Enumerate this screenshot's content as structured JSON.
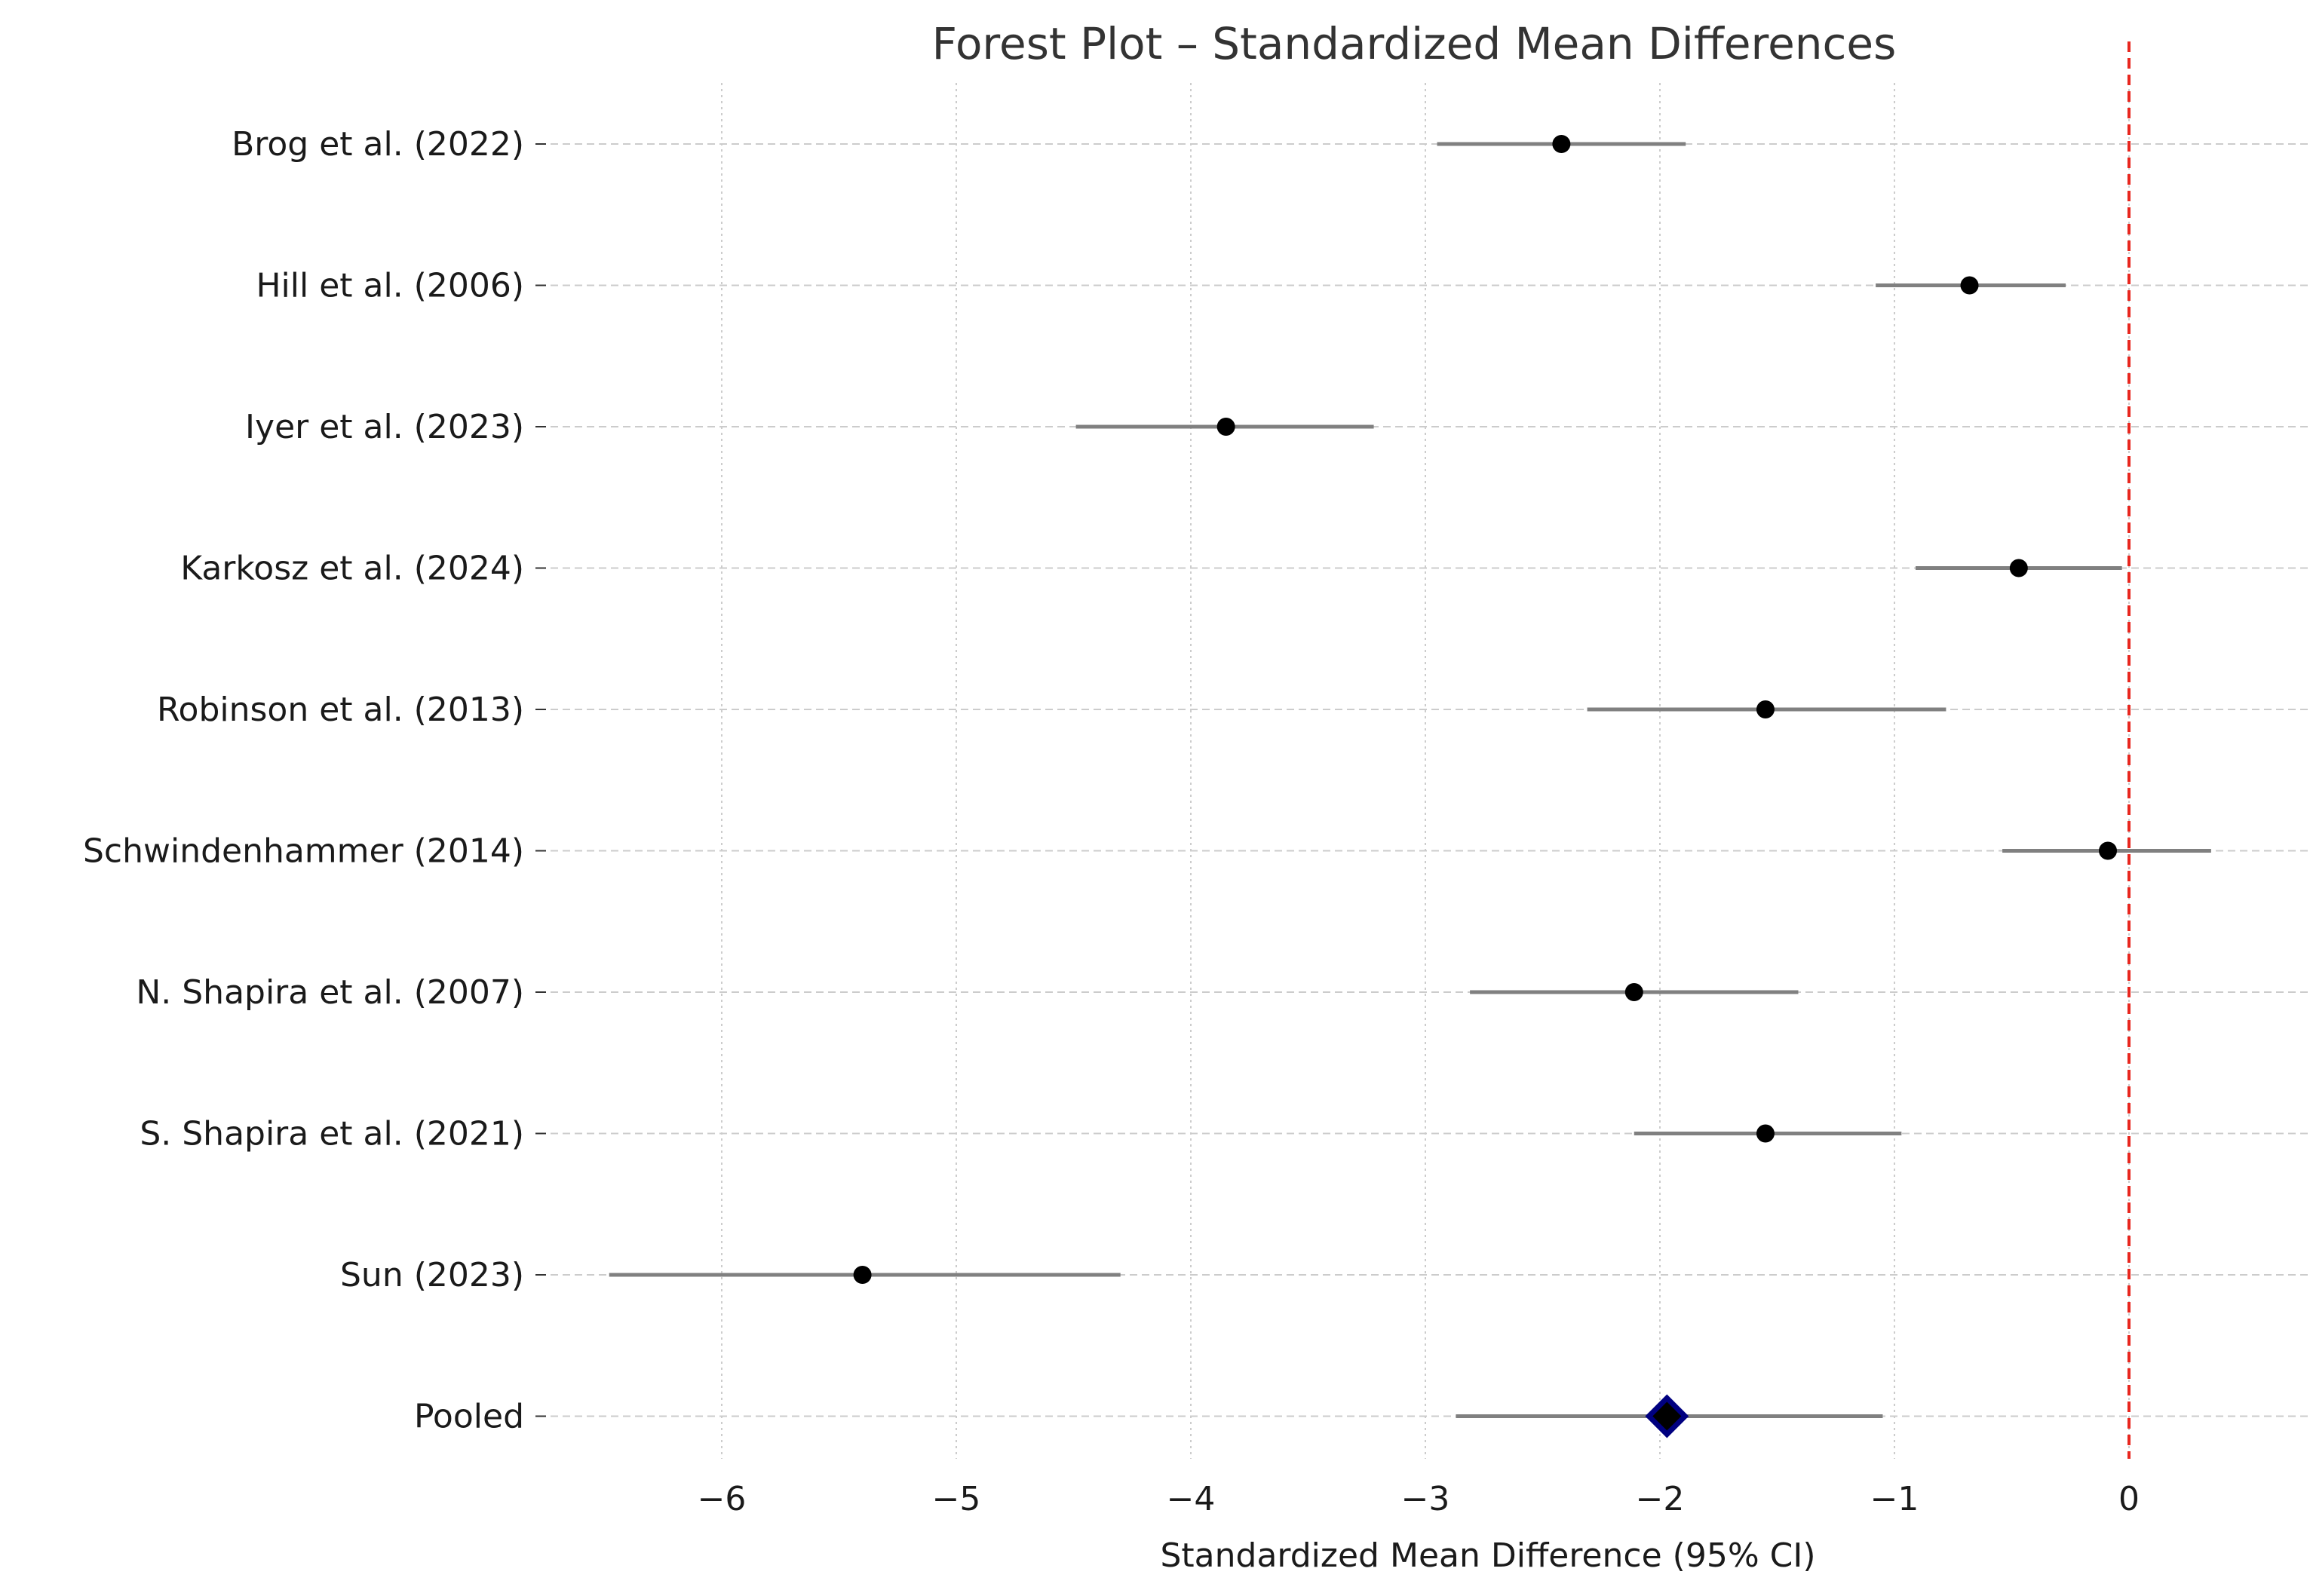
{
  "chart_data": {
    "type": "forest",
    "title": "Forest Plot – Standardized Mean Differences",
    "xlabel": "Standardized Mean Difference (95% CI)",
    "ylabel": "",
    "xlim": [
      -6.8,
      0.7
    ],
    "xticks": [
      -6,
      -5,
      -4,
      -3,
      -2,
      -1,
      0
    ],
    "xtick_labels": [
      "−6",
      "−5",
      "−4",
      "−3",
      "−2",
      "−1",
      "0"
    ],
    "reference_line": 0,
    "grid": true,
    "studies": [
      {
        "label": "Brog et al. (2022)",
        "estimate": -2.42,
        "ci_low": -2.95,
        "ci_high": -1.89
      },
      {
        "label": "Hill et al. (2006)",
        "estimate": -0.68,
        "ci_low": -1.08,
        "ci_high": -0.27
      },
      {
        "label": "Iyer et al. (2023)",
        "estimate": -3.85,
        "ci_low": -4.49,
        "ci_high": -3.22
      },
      {
        "label": "Karkosz et al. (2024)",
        "estimate": -0.47,
        "ci_low": -0.91,
        "ci_high": -0.03
      },
      {
        "label": "Robinson et al. (2013)",
        "estimate": -1.55,
        "ci_low": -2.31,
        "ci_high": -0.78
      },
      {
        "label": "Schwindenhammer (2014)",
        "estimate": -0.09,
        "ci_low": -0.54,
        "ci_high": 0.35
      },
      {
        "label": "N. Shapira et al. (2007)",
        "estimate": -2.11,
        "ci_low": -2.81,
        "ci_high": -1.41
      },
      {
        "label": "S. Shapira et al. (2021)",
        "estimate": -1.55,
        "ci_low": -2.11,
        "ci_high": -0.97
      },
      {
        "label": "Sun (2023)",
        "estimate": -5.4,
        "ci_low": -6.48,
        "ci_high": -4.3
      },
      {
        "label": "Pooled",
        "estimate": -1.97,
        "ci_low": -2.87,
        "ci_high": -1.05,
        "pooled": true
      }
    ]
  },
  "colors": {
    "point": "#000000",
    "ci_line": "#808080",
    "pooled_marker_fill": "#000000",
    "pooled_marker_edge": "#000080",
    "reference_line": "#e8271f",
    "grid": "#cccccc",
    "text": "#1a1a1a",
    "title": "#333333"
  }
}
